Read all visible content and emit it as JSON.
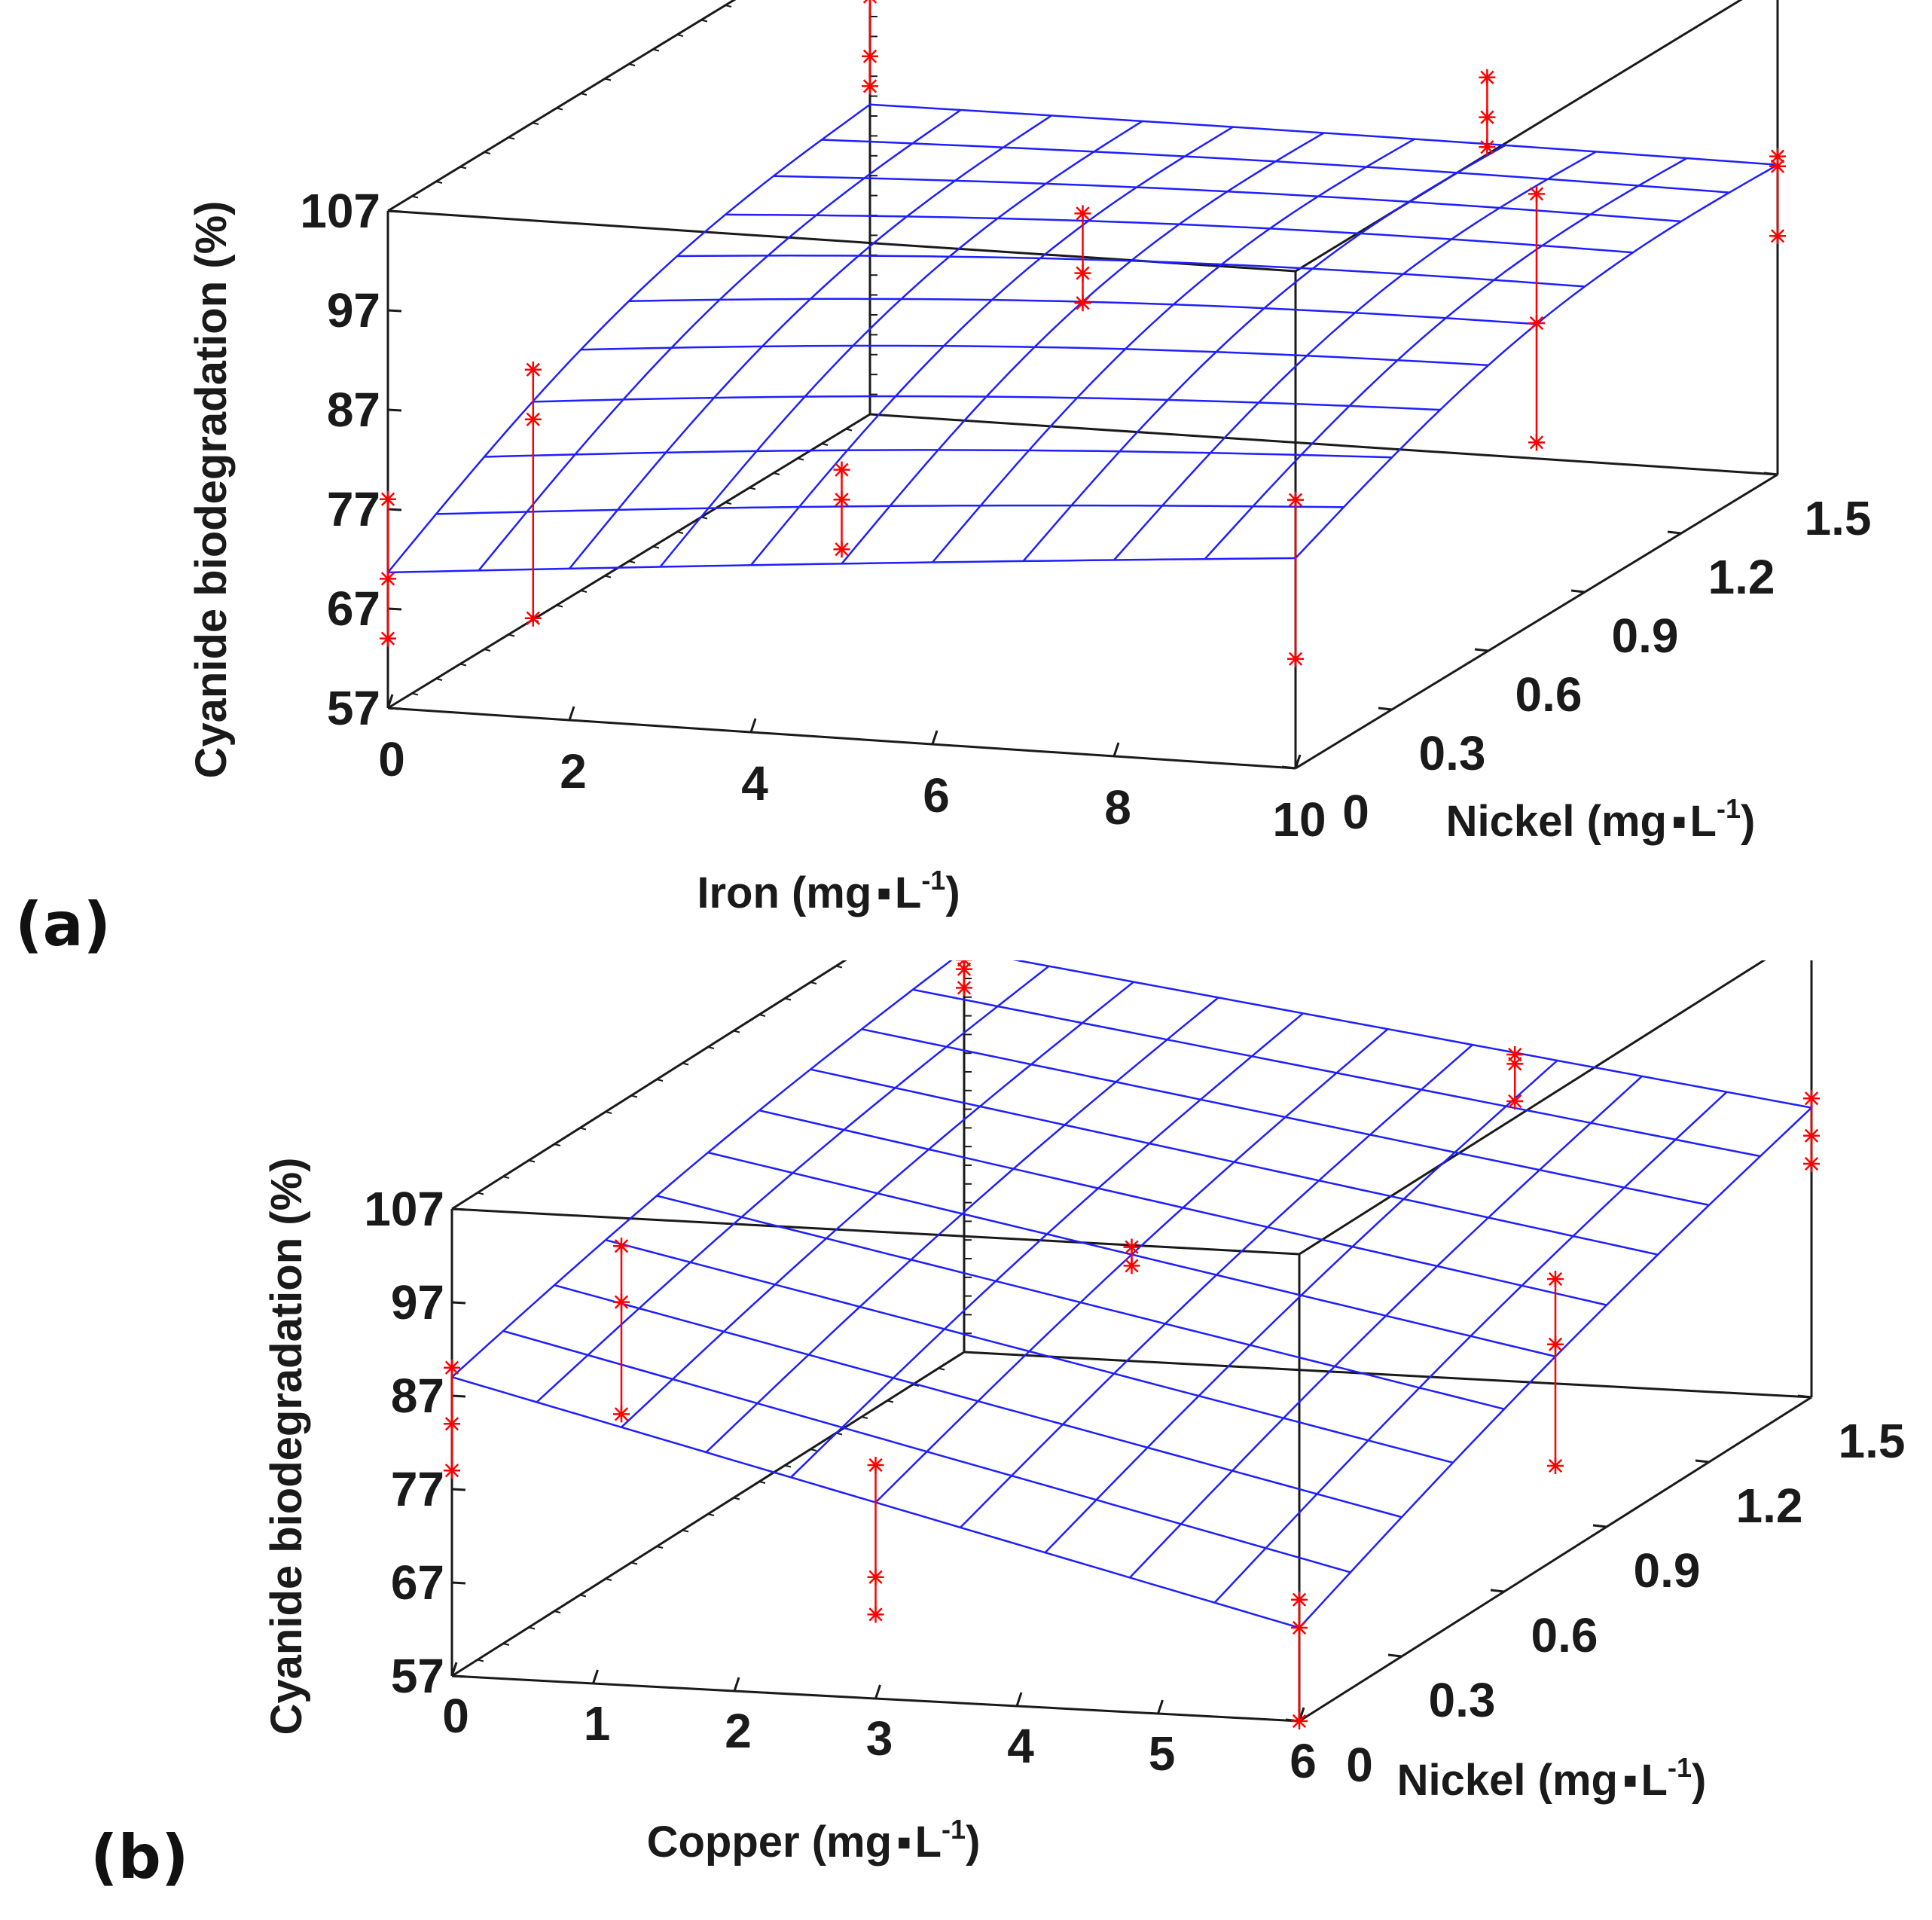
{
  "colors": {
    "surface": "#1f1fff",
    "points": "#ff0000",
    "box": "#1a1a1a"
  },
  "chart_data": [
    {
      "type": "surface3d",
      "panel_label": "(a)",
      "zlabel": "Cyanide biodegradation (%)",
      "xlabel": "Iron (mg",
      "ylabel": "Nickel (mg",
      "unit_sep": "▪",
      "unit_base": "L",
      "unit_exp": "-1",
      "unit_close": ")",
      "x_ticks": [
        "0",
        "2",
        "4",
        "6",
        "8",
        "10"
      ],
      "y_ticks": [
        "0",
        "0.3",
        "0.6",
        "0.9",
        "1.2",
        "1.5"
      ],
      "z_ticks": [
        "57",
        "67",
        "77",
        "87",
        "97",
        "107"
      ],
      "xlim": [
        0,
        10
      ],
      "ylim": [
        0,
        1.5
      ],
      "zlim": [
        57,
        107
      ],
      "surface": {
        "x_values": [
          0,
          1,
          2,
          3,
          4,
          5,
          6,
          7,
          8,
          9,
          10
        ],
        "y_values": [
          0,
          0.15,
          0.3,
          0.45,
          0.6,
          0.75,
          0.9,
          1.05,
          1.2,
          1.35,
          1.5
        ],
        "corners_z": {
          "x0_y0": 70.5,
          "x10_y0": 78,
          "x0_y1.5": 88,
          "x10_y1.5": 88
        },
        "peak_z": 92
      },
      "replicates": [
        {
          "x": 0,
          "y": 0,
          "z": [
            64,
            70,
            78
          ]
        },
        {
          "x": 1.6,
          "y": 0,
          "z": [
            67,
            87,
            92
          ]
        },
        {
          "x": 0,
          "y": 1.5,
          "z": [
            90,
            93,
            99
          ]
        },
        {
          "x": 5,
          "y": 0.75,
          "z": [
            86,
            89,
            95
          ]
        },
        {
          "x": 10,
          "y": 0,
          "z": [
            68,
            84
          ]
        },
        {
          "x": 10,
          "y": 1.5,
          "z": [
            81,
            88,
            89
          ]
        },
        {
          "x": 5,
          "y": 0,
          "z": [
            76,
            81,
            84
          ]
        },
        {
          "x": 6.8,
          "y": 1.5,
          "z": [
            88,
            91,
            95
          ]
        },
        {
          "x": 10,
          "y": 0.75,
          "z": [
            75,
            87,
            100
          ]
        }
      ]
    },
    {
      "type": "surface3d",
      "panel_label": "(b)",
      "zlabel": "Cyanide biodegradation (%)",
      "xlabel": "Copper (mg",
      "ylabel": "Nickel (mg",
      "unit_sep": "▪",
      "unit_base": "L",
      "unit_exp": "-1",
      "unit_close": ")",
      "x_ticks": [
        "0",
        "1",
        "2",
        "3",
        "4",
        "5",
        "6"
      ],
      "y_ticks": [
        "0",
        "0.3",
        "0.6",
        "0.9",
        "1.2",
        "1.5"
      ],
      "z_ticks": [
        "57",
        "67",
        "77",
        "87",
        "97",
        "107"
      ],
      "xlim": [
        0,
        6
      ],
      "ylim": [
        0,
        1.5
      ],
      "zlim": [
        57,
        107
      ],
      "surface": {
        "x_values": [
          0,
          0.6,
          1.2,
          1.8,
          2.4,
          3,
          3.6,
          4.2,
          4.8,
          5.4,
          6
        ],
        "y_values": [
          0,
          0.15,
          0.3,
          0.45,
          0.6,
          0.75,
          0.9,
          1.05,
          1.2,
          1.35,
          1.5
        ],
        "corners_z": {
          "x0_y0": 89,
          "x6_y0": 67,
          "x0_y1.5": 100,
          "x6_y1.5": 88
        },
        "peak_z": 100
      },
      "replicates": [
        {
          "x": 0,
          "y": 0,
          "z": [
            79,
            84,
            90
          ]
        },
        {
          "x": 1.2,
          "y": 0,
          "z": [
            86,
            98,
            104
          ]
        },
        {
          "x": 0,
          "y": 1.5,
          "z": [
            96,
            98,
            99
          ]
        },
        {
          "x": 3,
          "y": 0,
          "z": [
            66,
            70,
            82
          ]
        },
        {
          "x": 3,
          "y": 0.75,
          "z": [
            86,
            88
          ]
        },
        {
          "x": 3.9,
          "y": 1.5,
          "z": [
            87,
            91,
            92
          ]
        },
        {
          "x": 6,
          "y": 0,
          "z": [
            57,
            67,
            70
          ]
        },
        {
          "x": 6,
          "y": 0.75,
          "z": [
            67,
            80,
            87
          ]
        },
        {
          "x": 6,
          "y": 1.5,
          "z": [
            82,
            85,
            89
          ]
        }
      ]
    }
  ]
}
